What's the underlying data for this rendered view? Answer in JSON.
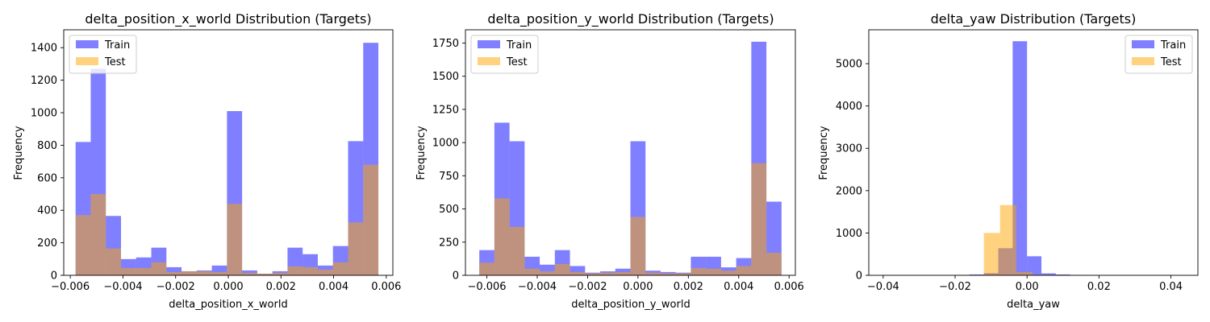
{
  "legend_colors": {
    "train": "#0000ff",
    "test": "#ffa500"
  },
  "chart_data": [
    {
      "type": "histogram",
      "title": "delta_position_x_world Distribution (Targets)",
      "xlabel": "delta_position_x_world",
      "ylabel": "Frequency",
      "xlim": [
        -0.00625,
        0.00625
      ],
      "ylim": [
        0,
        1510
      ],
      "xticks": [
        -0.006,
        -0.004,
        -0.002,
        0.0,
        0.002,
        0.004,
        0.006
      ],
      "xtick_labels": [
        "−0.006",
        "−0.004",
        "−0.002",
        "0.000",
        "0.002",
        "0.004",
        "0.006"
      ],
      "yticks": [
        0,
        200,
        400,
        600,
        800,
        1000,
        1200,
        1400
      ],
      "ytick_labels": [
        "0",
        "200",
        "400",
        "600",
        "800",
        "1000",
        "1200",
        "1400"
      ],
      "legend": {
        "placement": "upper left",
        "entries": [
          "Train",
          "Test"
        ]
      },
      "series": [
        {
          "name": "Train",
          "color": "#0000ff",
          "alpha": 0.5,
          "bin_start": -0.0058,
          "bin_width": 0.000575,
          "values": [
            820,
            1270,
            365,
            100,
            110,
            170,
            50,
            25,
            30,
            60,
            1010,
            30,
            10,
            25,
            170,
            130,
            60,
            180,
            825,
            1430
          ]
        },
        {
          "name": "Test",
          "color": "#ffa500",
          "alpha": 0.5,
          "bin_start": -0.0058,
          "bin_width": 0.000575,
          "values": [
            370,
            500,
            165,
            45,
            45,
            80,
            20,
            25,
            25,
            20,
            440,
            15,
            10,
            15,
            55,
            50,
            35,
            80,
            325,
            680
          ]
        }
      ]
    },
    {
      "type": "histogram",
      "title": "delta_position_y_world Distribution (Targets)",
      "xlabel": "delta_position_y_world",
      "ylabel": "Frequency",
      "xlim": [
        -0.00685,
        0.00625
      ],
      "ylim": [
        0,
        1850
      ],
      "xticks": [
        -0.006,
        -0.004,
        -0.002,
        0.0,
        0.002,
        0.004,
        0.006
      ],
      "xtick_labels": [
        "−0.006",
        "−0.004",
        "−0.002",
        "0.000",
        "0.002",
        "0.004",
        "0.006"
      ],
      "yticks": [
        0,
        250,
        500,
        750,
        1000,
        1250,
        1500,
        1750
      ],
      "ytick_labels": [
        "0",
        "250",
        "500",
        "750",
        "1000",
        "1250",
        "1500",
        "1750"
      ],
      "legend": {
        "placement": "upper left",
        "entries": [
          "Train",
          "Test"
        ]
      },
      "series": [
        {
          "name": "Train",
          "color": "#0000ff",
          "alpha": 0.5,
          "bin_start": -0.0063,
          "bin_width": 0.0006,
          "values": [
            190,
            1150,
            1010,
            140,
            80,
            190,
            70,
            20,
            30,
            50,
            1010,
            35,
            25,
            20,
            140,
            140,
            60,
            130,
            1760,
            555
          ]
        },
        {
          "name": "Test",
          "color": "#ffa500",
          "alpha": 0.5,
          "bin_start": -0.0063,
          "bin_width": 0.0006,
          "values": [
            95,
            580,
            365,
            50,
            30,
            85,
            25,
            15,
            20,
            25,
            440,
            20,
            15,
            15,
            55,
            50,
            35,
            70,
            845,
            170
          ]
        }
      ]
    },
    {
      "type": "histogram",
      "title": "delta_yaw Distribution (Targets)",
      "xlabel": "delta_yaw",
      "ylabel": "Frequency",
      "xlim": [
        -0.044,
        0.0475
      ],
      "ylim": [
        0,
        5800
      ],
      "xticks": [
        -0.04,
        -0.02,
        0.0,
        0.02,
        0.04
      ],
      "xtick_labels": [
        "−0.04",
        "−0.02",
        "0.00",
        "0.02",
        "0.04"
      ],
      "yticks": [
        0,
        1000,
        2000,
        3000,
        4000,
        5000
      ],
      "ytick_labels": [
        "0",
        "1000",
        "2000",
        "3000",
        "4000",
        "5000"
      ],
      "legend": {
        "placement": "upper right",
        "entries": [
          "Train",
          "Test"
        ]
      },
      "series": [
        {
          "name": "Train",
          "color": "#0000ff",
          "alpha": 0.5,
          "bin_start": -0.04,
          "bin_width": 0.004,
          "values": [
            5,
            5,
            5,
            5,
            5,
            10,
            20,
            50,
            640,
            5530,
            450,
            45,
            20,
            10,
            5,
            5,
            5,
            5,
            5,
            5
          ]
        },
        {
          "name": "Test",
          "color": "#ffa500",
          "alpha": 0.5,
          "bin_start": -0.0435,
          "bin_width": 0.0045,
          "values": [
            2,
            2,
            2,
            2,
            2,
            5,
            10,
            1000,
            1660,
            80,
            15,
            5,
            2,
            2,
            2,
            2,
            2,
            2,
            2,
            2
          ]
        }
      ]
    }
  ]
}
